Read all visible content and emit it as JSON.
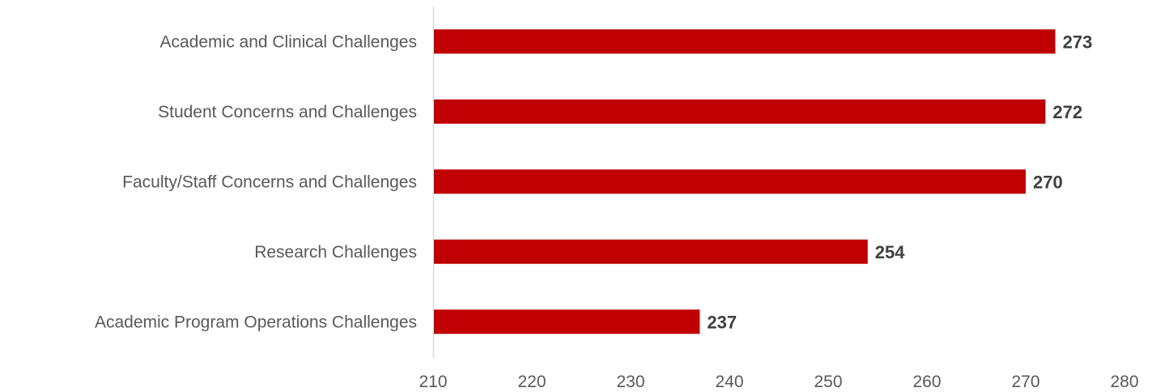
{
  "chart_data": {
    "type": "bar",
    "orientation": "horizontal",
    "categories": [
      "Academic and Clinical Challenges",
      "Student Concerns and Challenges",
      "Faculty/Staff Concerns and Challenges",
      "Research Challenges",
      "Academic Program Operations Challenges"
    ],
    "values": [
      273,
      272,
      270,
      254,
      237
    ],
    "xlim": [
      210,
      280
    ],
    "xticks": [
      "210",
      "220",
      "230",
      "240",
      "250",
      "260",
      "270",
      "280"
    ],
    "bar_color": "#C00000",
    "grid": false,
    "legend": "none"
  }
}
